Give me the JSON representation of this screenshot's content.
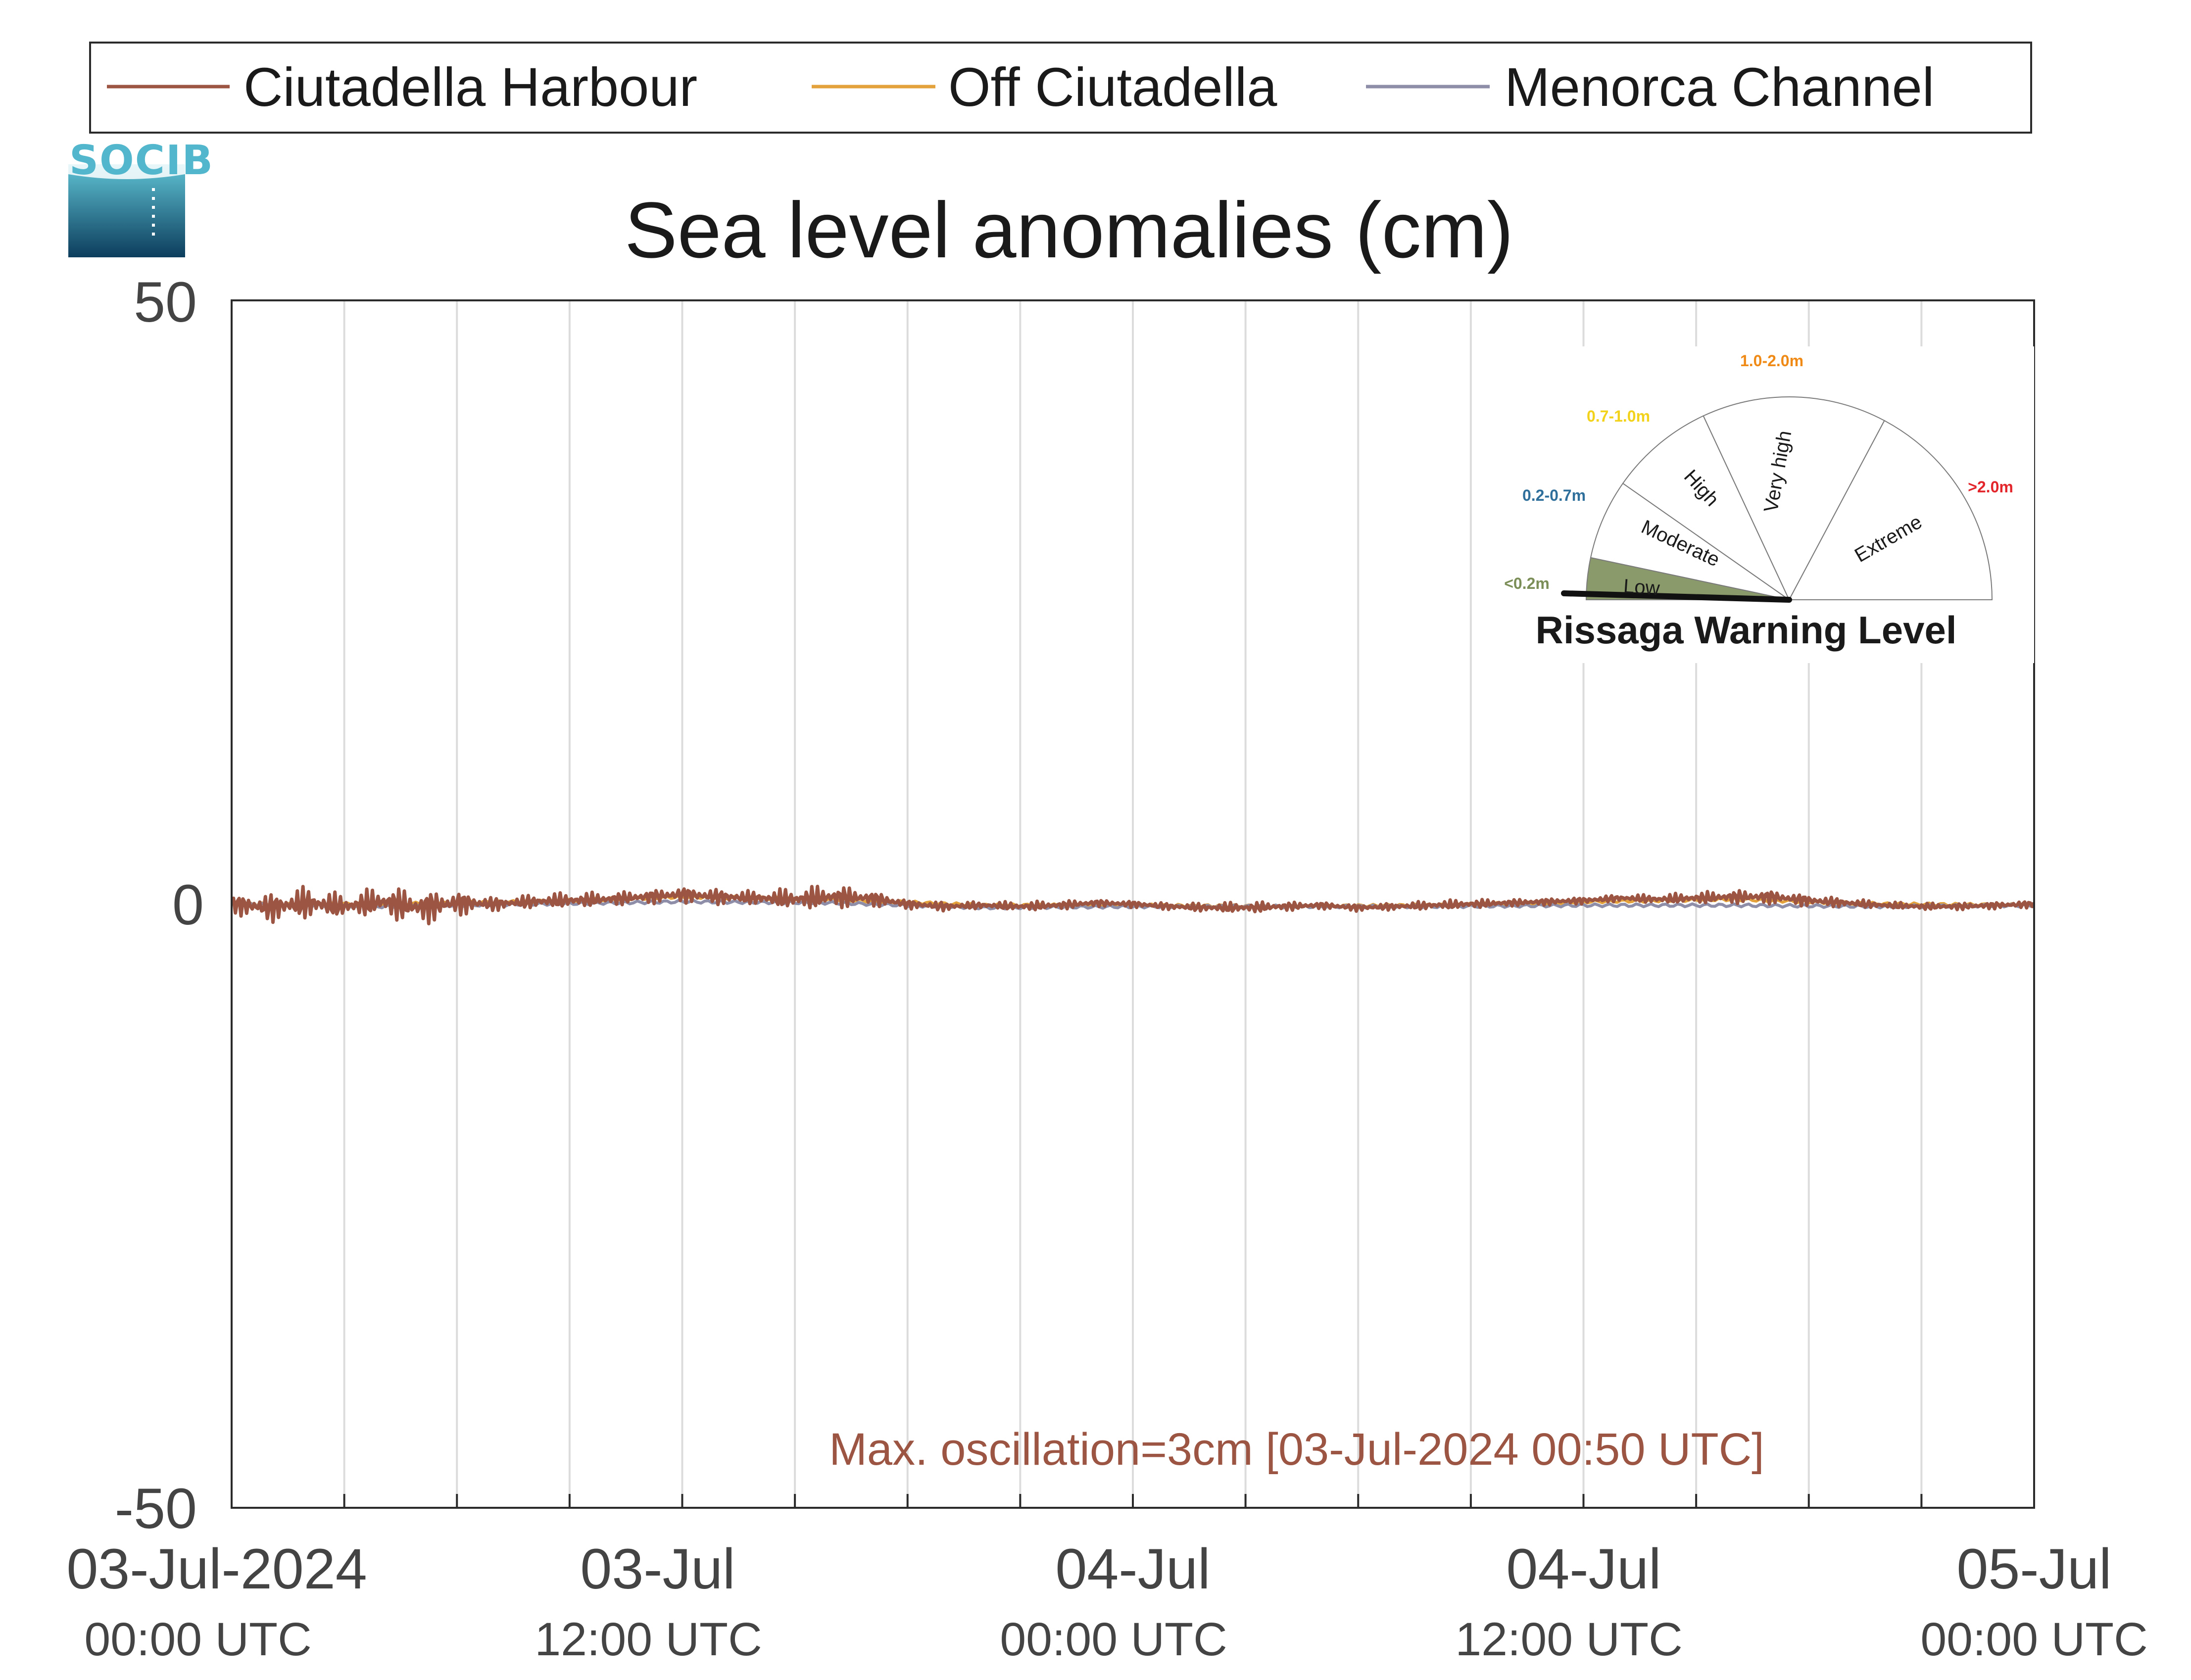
{
  "chart_data": {
    "type": "line",
    "title": "Sea level anomalies (cm)",
    "xlabel": "",
    "ylabel": "",
    "ylim": [
      -50,
      50
    ],
    "y_ticks": [
      "50",
      "0",
      "-50"
    ],
    "x_range": [
      "2024-07-03 00:00 UTC",
      "2024-07-05 00:00 UTC"
    ],
    "x_ticks": [
      {
        "label": "03-Jul-2024",
        "sub": "00:00 UTC"
      },
      {
        "label": "03-Jul",
        "sub": "12:00 UTC"
      },
      {
        "label": "04-Jul",
        "sub": "00:00 UTC"
      },
      {
        "label": "04-Jul",
        "sub": "12:00 UTC"
      },
      {
        "label": "05-Jul",
        "sub": "00:00 UTC"
      }
    ],
    "grid": "vertical lines every 3 hours",
    "legend_position": "top, above plot",
    "series": [
      {
        "name": "Ciutadella Harbour",
        "color": "#9c5542",
        "x_hours": [
          0,
          1,
          2,
          3,
          4,
          5,
          6,
          7,
          8,
          9,
          10,
          11,
          12,
          13,
          14,
          15,
          16,
          17,
          18,
          19,
          20,
          21,
          22,
          23,
          24,
          25,
          26,
          27,
          28,
          29,
          30,
          31,
          32,
          33,
          34,
          35,
          36,
          37,
          38,
          39,
          40,
          41,
          42,
          43,
          44,
          45,
          46,
          47,
          48
        ],
        "values": [
          0,
          -0.3,
          0.1,
          -0.2,
          0.2,
          -0.3,
          0.1,
          0,
          0.2,
          0.3,
          0.4,
          0.6,
          0.8,
          0.6,
          0.5,
          0.4,
          0.6,
          0.5,
          0,
          -0.2,
          -0.1,
          -0.2,
          -0.1,
          0.1,
          0,
          -0.2,
          -0.3,
          -0.3,
          -0.2,
          -0.1,
          -0.3,
          -0.2,
          -0.1,
          0,
          0.1,
          0.2,
          0.3,
          0.5,
          0.4,
          0.5,
          0.6,
          0.6,
          0.3,
          0.1,
          -0.1,
          -0.2,
          -0.2,
          -0.1,
          0
        ],
        "oscillation_amplitude": [
          0.8,
          1.3,
          1.5,
          1.0,
          1.4,
          1.6,
          1.1,
          0.6,
          0.6,
          0.7,
          0.6,
          0.6,
          0.7,
          0.7,
          0.6,
          1.0,
          1.1,
          0.7,
          0.4,
          0.4,
          0.3,
          0.4,
          0.4,
          0.3,
          0.3,
          0.3,
          0.4,
          0.5,
          0.4,
          0.3,
          0.3,
          0.3,
          0.4,
          0.4,
          0.3,
          0.3,
          0.3,
          0.3,
          0.4,
          0.5,
          0.6,
          0.6,
          0.5,
          0.4,
          0.3,
          0.3,
          0.3,
          0.3,
          0.3
        ]
      },
      {
        "name": "Off Ciutadella",
        "color": "#e3a23c",
        "x_hours": [
          0,
          4,
          8,
          12,
          16,
          20,
          24,
          28,
          32,
          36,
          40,
          44,
          48
        ],
        "values": [
          0,
          0,
          0.2,
          0.6,
          0.4,
          -0.1,
          -0.1,
          -0.2,
          -0.1,
          0.2,
          0.4,
          0,
          -0.1
        ]
      },
      {
        "name": "Menorca Channel",
        "color": "#8f8ea8",
        "x_hours": [
          0,
          4,
          8,
          12,
          16,
          20,
          24,
          28,
          32,
          36,
          40,
          44,
          48
        ],
        "values": [
          0,
          -0.2,
          0,
          0.2,
          0.1,
          -0.3,
          -0.2,
          -0.2,
          -0.2,
          -0.1,
          -0.1,
          -0.2,
          -0.1
        ]
      }
    ],
    "annotation": "Max. oscillation=3cm [03-Jul-2024 00:50 UTC]"
  },
  "logo": {
    "text": "SOCIB"
  },
  "gauge": {
    "title": "Rissaga Warning Level",
    "current_level": "Low",
    "segments": [
      {
        "name": "Low",
        "range": "<0.2m",
        "range_color": "#7b8e57",
        "fill": "#8a9a6a"
      },
      {
        "name": "Moderate",
        "range": "0.2-0.7m",
        "range_color": "#2f6f9c",
        "fill": "#ffffff"
      },
      {
        "name": "High",
        "range": "0.7-1.0m",
        "range_color": "#f2d21a",
        "fill": "#ffffff"
      },
      {
        "name": "Very high",
        "range": "1.0-2.0m",
        "range_color": "#ef8a16",
        "fill": "#ffffff"
      },
      {
        "name": "Extreme",
        "range": ">2.0m",
        "range_color": "#e2262b",
        "fill": "#ffffff"
      }
    ]
  }
}
